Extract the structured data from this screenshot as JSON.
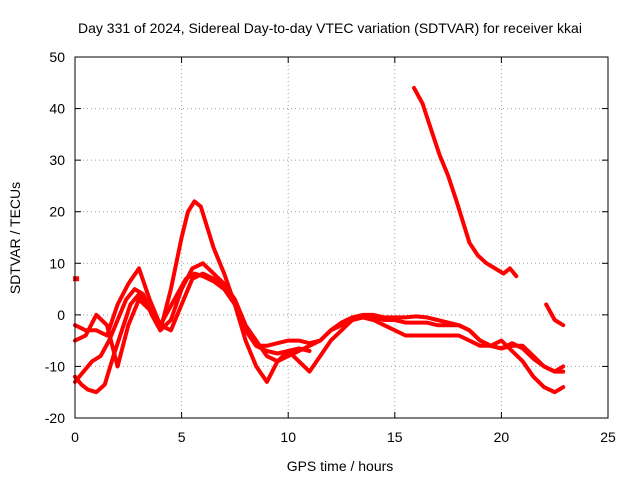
{
  "chart_data": {
    "type": "line",
    "title": "Day 331 of 2024, Sidereal Day-to-day VTEC variation (SDTVAR) for receiver kkai",
    "xlabel": "GPS time / hours",
    "ylabel": "SDTVAR / TECUs",
    "xlim": [
      0,
      25
    ],
    "ylim": [
      -20,
      50
    ],
    "xticks": [
      0,
      5,
      10,
      15,
      20,
      25
    ],
    "yticks": [
      -20,
      -10,
      0,
      10,
      20,
      30,
      40,
      50
    ],
    "grid": true,
    "color": "#ff0000",
    "series": [
      {
        "name": "s1",
        "x": [
          0,
          0.3,
          0.6,
          1.0,
          1.4,
          1.8,
          2.2,
          2.6,
          3.0,
          3.5,
          4.0,
          4.4,
          4.8,
          5.2,
          5.6,
          6.0,
          6.5,
          7.0,
          7.5,
          8.0,
          8.5,
          9.0,
          9.5,
          10.0,
          10.5,
          11.0
        ],
        "y": [
          -12,
          -13.5,
          -14.5,
          -15,
          -13.5,
          -8,
          -3,
          2,
          4,
          1,
          -2,
          1,
          4,
          7,
          8,
          7.5,
          6.5,
          5,
          2,
          -3,
          -6,
          -7,
          -7.5,
          -7,
          -6.5,
          -7
        ]
      },
      {
        "name": "s2",
        "x": [
          0,
          0.5,
          1.0,
          1.5,
          2.0,
          2.5,
          3.0,
          3.5,
          4.0,
          4.5,
          5.0,
          5.5,
          6.0,
          6.5,
          7.0,
          7.5,
          8.0,
          8.5,
          9.0,
          9.5,
          10.0,
          10.5,
          11.0,
          11.5,
          12.0,
          12.5,
          13.0,
          13.5,
          14.0,
          14.5,
          15.0,
          15.5,
          16.0,
          16.5,
          17.0,
          17.5,
          18.0,
          18.5,
          19.0,
          19.5,
          20.0,
          20.5,
          21.0,
          21.5,
          22.0,
          22.5,
          22.9
        ],
        "y": [
          -2,
          -3,
          -3,
          -4,
          2,
          6,
          9,
          3,
          -2,
          -3,
          2,
          7,
          8,
          7,
          6,
          3,
          -2,
          -5,
          -8,
          -9,
          -8,
          -7,
          -6,
          -5,
          -3,
          -2,
          -1,
          -0.5,
          -0.5,
          -1,
          -1,
          -1.5,
          -1.5,
          -1.5,
          -2,
          -2,
          -2,
          -3,
          -5,
          -6,
          -6.5,
          -6,
          -6,
          -8,
          -10,
          -11,
          -11
        ]
      },
      {
        "name": "s3",
        "x": [
          0,
          0.4,
          0.8,
          1.2,
          1.6,
          2.0,
          2.4,
          2.8,
          3.2,
          3.6,
          4.0,
          4.5,
          5.0,
          5.5,
          6.0,
          6.5,
          7.0,
          7.5,
          8.0,
          8.5,
          9.0,
          9.5,
          10.0,
          10.5,
          11.0,
          11.5,
          12.0,
          12.5,
          13.0,
          13.5,
          14.0,
          14.5,
          15.0,
          15.5,
          16.0,
          16.5,
          17.0,
          17.5,
          18.0,
          18.5,
          19.0,
          19.5,
          20.0,
          20.5,
          21.0,
          21.5,
          22.0,
          22.5,
          22.9
        ],
        "y": [
          -13,
          -11,
          -9,
          -8,
          -5,
          -1,
          3,
          5,
          4,
          0,
          -3,
          -1,
          5,
          9,
          10,
          8,
          6,
          2,
          -3,
          -6,
          -6,
          -5.5,
          -5,
          -5,
          -5.5,
          -5,
          -3,
          -1.5,
          -0.5,
          0,
          0,
          -0.5,
          -0.5,
          -0.5,
          -0.3,
          -0.5,
          -1,
          -1.5,
          -2,
          -3,
          -5,
          -6,
          -6.5,
          -5.5,
          -6.5,
          -8.5,
          -10,
          -11,
          -10
        ]
      },
      {
        "name": "s4",
        "x": [
          0,
          0.5,
          1.0,
          1.5,
          2.0,
          2.5,
          3.0,
          3.5,
          4.0,
          4.5,
          5.0,
          5.3,
          5.6,
          5.9,
          6.2,
          6.5,
          7.0,
          7.5,
          8.0,
          8.5,
          9.0,
          9.5,
          10.0,
          10.5,
          11.0,
          11.5,
          12.0,
          12.5,
          13.0,
          13.5,
          14.0,
          14.5,
          15.0,
          15.5,
          16.0,
          16.5,
          17.0,
          17.5,
          18.0,
          18.5,
          19.0,
          19.5,
          20.0,
          20.5,
          21.0,
          21.5,
          22.0,
          22.5,
          22.9
        ],
        "y": [
          -5,
          -4,
          0,
          -2,
          -10,
          -2,
          3,
          1,
          -3,
          5,
          15,
          20,
          22,
          21,
          17,
          13,
          8,
          2,
          -5,
          -10,
          -13,
          -9,
          -7,
          -9,
          -11,
          -8,
          -5,
          -3,
          -1,
          -0.5,
          -1,
          -2,
          -3,
          -4,
          -4,
          -4,
          -4,
          -4,
          -4,
          -5,
          -6,
          -6,
          -5,
          -7,
          -9,
          -12,
          -14,
          -15,
          -14
        ]
      },
      {
        "name": "s5",
        "x": [
          15.9,
          16.3,
          16.7,
          17.1,
          17.5,
          17.9,
          18.2,
          18.5,
          18.9,
          19.3,
          19.7,
          20.1,
          20.4,
          20.7
        ],
        "y": [
          44,
          41,
          36,
          31,
          27,
          22,
          18,
          14,
          11.5,
          10,
          9,
          8,
          9,
          7.5
        ]
      },
      {
        "name": "s6",
        "x": [
          22.1,
          22.5,
          22.9
        ],
        "y": [
          2,
          -1,
          -2
        ]
      },
      {
        "name": "s7",
        "x": [
          0.05
        ],
        "y": [
          7
        ]
      }
    ]
  }
}
